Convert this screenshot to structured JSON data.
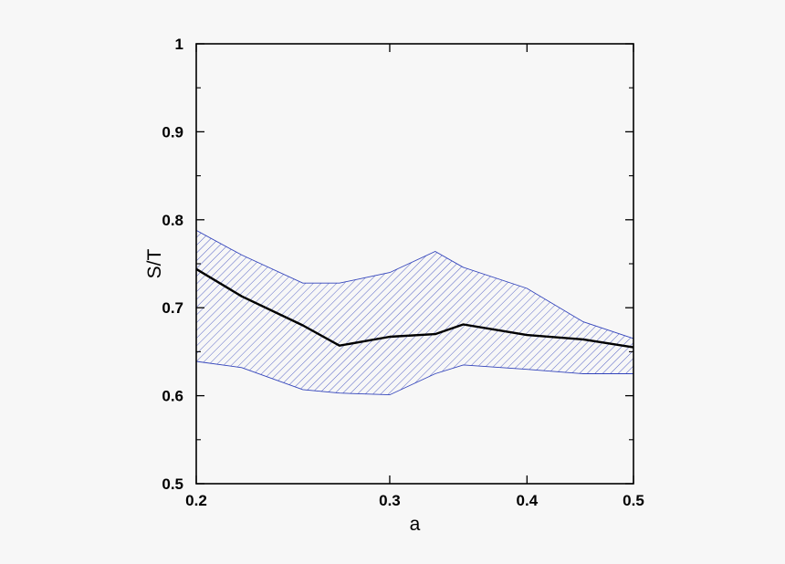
{
  "chart_data": {
    "type": "line",
    "title": "",
    "xlabel": "a",
    "ylabel": "S/T",
    "xscale": "log",
    "xlim": [
      0.2,
      0.5
    ],
    "ylim": [
      0.5,
      1.0
    ],
    "x_ticks": [
      0.2,
      0.3,
      0.4,
      0.5
    ],
    "x_tick_labels": [
      "0.2",
      "0.3",
      "0.4",
      "0.5"
    ],
    "y_ticks": [
      0.5,
      0.6,
      0.7,
      0.8,
      0.9,
      1.0
    ],
    "y_tick_labels": [
      "0.5",
      "0.6",
      "0.7",
      "0.8",
      "0.9",
      "1"
    ],
    "grid": false,
    "legend": "none",
    "series": [
      {
        "role": "central",
        "color": "#000000",
        "x": [
          0.2,
          0.22,
          0.25,
          0.27,
          0.3,
          0.33,
          0.35,
          0.4,
          0.45,
          0.5
        ],
        "y": [
          0.744,
          0.713,
          0.68,
          0.657,
          0.667,
          0.67,
          0.681,
          0.669,
          0.664,
          0.655
        ]
      },
      {
        "role": "band-upper",
        "color": "#3344bb",
        "x": [
          0.2,
          0.22,
          0.25,
          0.27,
          0.3,
          0.33,
          0.35,
          0.4,
          0.45,
          0.5
        ],
        "y": [
          0.788,
          0.76,
          0.728,
          0.728,
          0.74,
          0.764,
          0.746,
          0.722,
          0.684,
          0.665
        ]
      },
      {
        "role": "band-lower",
        "color": "#3344bb",
        "x": [
          0.2,
          0.22,
          0.25,
          0.27,
          0.3,
          0.33,
          0.35,
          0.4,
          0.45,
          0.5
        ],
        "y": [
          0.639,
          0.632,
          0.607,
          0.603,
          0.601,
          0.625,
          0.635,
          0.63,
          0.625,
          0.625
        ]
      }
    ]
  }
}
